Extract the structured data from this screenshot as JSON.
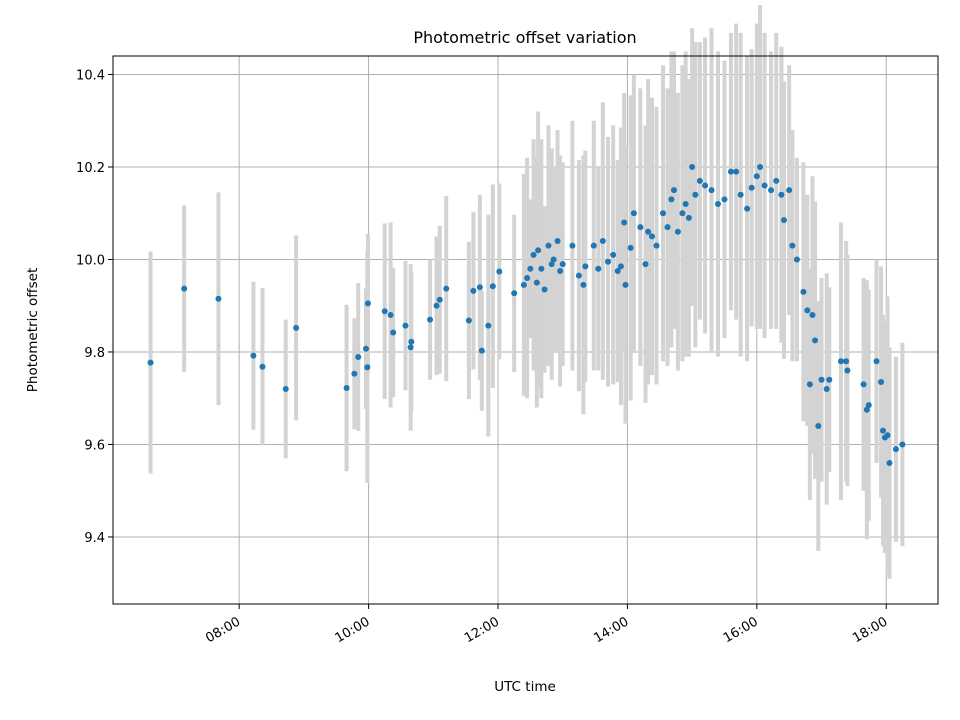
{
  "chart_data": {
    "type": "scatter",
    "title": "Photometric offset variation",
    "xlabel": "UTC time",
    "ylabel": "Photometric offset",
    "x_tick_labels": [
      "08:00",
      "10:00",
      "12:00",
      "14:00",
      "16:00",
      "18:00"
    ],
    "x_tick_hours": [
      8,
      10,
      12,
      14,
      16,
      18
    ],
    "y_tick_labels": [
      "9.4",
      "9.6",
      "9.8",
      "10.0",
      "10.2",
      "10.4"
    ],
    "y_tick_values": [
      9.4,
      9.6,
      9.8,
      10.0,
      10.2,
      10.4
    ],
    "xlim_hours": [
      6.05,
      18.8
    ],
    "ylim": [
      9.255,
      10.44
    ],
    "grid": true,
    "point_color": "#1f77b4",
    "errorbar_color": "#d3d3d3",
    "x_unit": "UTC hour",
    "points": [
      [
        6.63,
        9.777,
        0.24
      ],
      [
        7.15,
        9.937,
        0.18
      ],
      [
        7.68,
        9.915,
        0.23
      ],
      [
        8.22,
        9.792,
        0.16
      ],
      [
        8.36,
        9.768,
        0.17
      ],
      [
        8.72,
        9.72,
        0.15
      ],
      [
        8.88,
        9.852,
        0.2
      ],
      [
        9.66,
        9.722,
        0.18
      ],
      [
        9.78,
        9.753,
        0.12
      ],
      [
        9.84,
        9.789,
        0.16
      ],
      [
        9.96,
        9.807,
        0.13
      ],
      [
        9.99,
        9.905,
        0.15
      ],
      [
        9.98,
        9.767,
        0.25
      ],
      [
        10.25,
        9.888,
        0.19
      ],
      [
        10.34,
        9.88,
        0.2
      ],
      [
        10.38,
        9.842,
        0.14
      ],
      [
        10.57,
        9.857,
        0.14
      ],
      [
        10.66,
        9.822,
        0.15
      ],
      [
        10.65,
        9.81,
        0.18
      ],
      [
        10.95,
        9.87,
        0.13
      ],
      [
        11.05,
        9.9,
        0.15
      ],
      [
        11.1,
        9.913,
        0.16
      ],
      [
        11.2,
        9.937,
        0.2
      ],
      [
        11.55,
        9.868,
        0.17
      ],
      [
        11.62,
        9.932,
        0.17
      ],
      [
        11.72,
        9.94,
        0.2
      ],
      [
        11.75,
        9.803,
        0.13
      ],
      [
        11.85,
        9.857,
        0.24
      ],
      [
        11.92,
        9.942,
        0.22
      ],
      [
        12.02,
        9.974,
        0.19
      ],
      [
        12.25,
        9.927,
        0.17
      ],
      [
        12.4,
        9.945,
        0.24
      ],
      [
        12.45,
        9.96,
        0.26
      ],
      [
        12.5,
        9.98,
        0.15
      ],
      [
        12.55,
        10.01,
        0.25
      ],
      [
        12.6,
        9.95,
        0.27
      ],
      [
        12.62,
        10.02,
        0.3
      ],
      [
        12.67,
        9.98,
        0.28
      ],
      [
        12.72,
        9.935,
        0.18
      ],
      [
        12.78,
        10.03,
        0.26
      ],
      [
        12.83,
        9.99,
        0.25
      ],
      [
        12.86,
        10.0,
        0.2
      ],
      [
        12.92,
        10.04,
        0.24
      ],
      [
        12.96,
        9.975,
        0.25
      ],
      [
        13.0,
        9.99,
        0.22
      ],
      [
        13.15,
        10.03,
        0.27
      ],
      [
        13.25,
        9.965,
        0.25
      ],
      [
        13.32,
        9.945,
        0.28
      ],
      [
        13.35,
        9.985,
        0.25
      ],
      [
        13.48,
        10.03,
        0.27
      ],
      [
        13.55,
        9.98,
        0.22
      ],
      [
        13.62,
        10.04,
        0.3
      ],
      [
        13.7,
        9.995,
        0.27
      ],
      [
        13.78,
        10.01,
        0.28
      ],
      [
        13.85,
        9.975,
        0.24
      ],
      [
        13.9,
        9.985,
        0.3
      ],
      [
        13.95,
        10.08,
        0.28
      ],
      [
        13.97,
        9.945,
        0.3
      ],
      [
        14.05,
        10.025,
        0.33
      ],
      [
        14.1,
        10.1,
        0.3
      ],
      [
        14.2,
        10.07,
        0.3
      ],
      [
        14.28,
        9.99,
        0.3
      ],
      [
        14.32,
        10.06,
        0.33
      ],
      [
        14.38,
        10.05,
        0.3
      ],
      [
        14.45,
        10.03,
        0.3
      ],
      [
        14.55,
        10.1,
        0.32
      ],
      [
        14.62,
        10.07,
        0.3
      ],
      [
        14.68,
        10.13,
        0.32
      ],
      [
        14.72,
        10.15,
        0.3
      ],
      [
        14.78,
        10.06,
        0.3
      ],
      [
        14.85,
        10.1,
        0.32
      ],
      [
        14.9,
        10.12,
        0.33
      ],
      [
        14.95,
        10.09,
        0.3
      ],
      [
        15.0,
        10.2,
        0.3
      ],
      [
        15.05,
        10.14,
        0.33
      ],
      [
        15.12,
        10.17,
        0.3
      ],
      [
        15.2,
        10.16,
        0.32
      ],
      [
        15.3,
        10.15,
        0.35
      ],
      [
        15.4,
        10.12,
        0.33
      ],
      [
        15.5,
        10.13,
        0.3
      ],
      [
        15.6,
        10.19,
        0.3
      ],
      [
        15.68,
        10.19,
        0.32
      ],
      [
        15.75,
        10.14,
        0.35
      ],
      [
        15.85,
        10.11,
        0.33
      ],
      [
        15.92,
        10.155,
        0.3
      ],
      [
        16.0,
        10.18,
        0.33
      ],
      [
        16.05,
        10.2,
        0.35
      ],
      [
        16.12,
        10.16,
        0.33
      ],
      [
        16.22,
        10.15,
        0.3
      ],
      [
        16.3,
        10.17,
        0.32
      ],
      [
        16.38,
        10.14,
        0.32
      ],
      [
        16.42,
        10.085,
        0.3
      ],
      [
        16.5,
        10.15,
        0.27
      ],
      [
        16.55,
        10.03,
        0.25
      ],
      [
        16.62,
        10.0,
        0.22
      ],
      [
        16.72,
        9.93,
        0.28
      ],
      [
        16.78,
        9.89,
        0.25
      ],
      [
        16.82,
        9.73,
        0.25
      ],
      [
        16.86,
        9.88,
        0.3
      ],
      [
        16.9,
        9.825,
        0.3
      ],
      [
        16.95,
        9.64,
        0.27
      ],
      [
        17.0,
        9.74,
        0.22
      ],
      [
        17.08,
        9.72,
        0.25
      ],
      [
        17.12,
        9.74,
        0.2
      ],
      [
        17.3,
        9.78,
        0.3
      ],
      [
        17.38,
        9.78,
        0.26
      ],
      [
        17.4,
        9.76,
        0.25
      ],
      [
        17.65,
        9.73,
        0.23
      ],
      [
        17.7,
        9.675,
        0.28
      ],
      [
        17.73,
        9.685,
        0.25
      ],
      [
        17.85,
        9.78,
        0.22
      ],
      [
        17.92,
        9.735,
        0.25
      ],
      [
        17.95,
        9.63,
        0.25
      ],
      [
        17.98,
        9.615,
        0.25
      ],
      [
        18.02,
        9.62,
        0.3
      ],
      [
        18.05,
        9.56,
        0.25
      ],
      [
        18.15,
        9.59,
        0.2
      ],
      [
        18.25,
        9.6,
        0.22
      ]
    ]
  }
}
